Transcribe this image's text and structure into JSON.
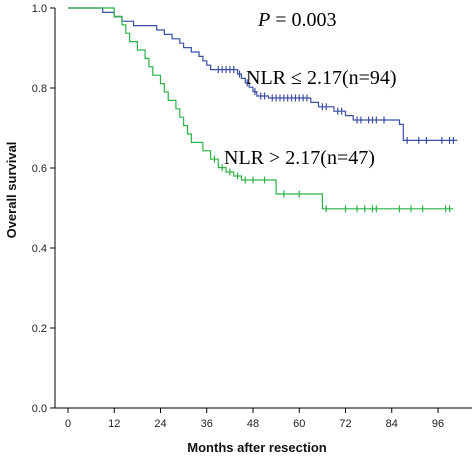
{
  "chart_data": {
    "type": "line",
    "xlabel": "Months after resection",
    "ylabel": "Overall survival",
    "xlim": [
      0,
      102
    ],
    "ylim": [
      0,
      1.0
    ],
    "xticks": [
      0,
      12,
      24,
      36,
      48,
      60,
      72,
      84,
      96
    ],
    "yticks": [
      0.0,
      0.2,
      0.4,
      0.6,
      0.8,
      1.0
    ],
    "xtick_labels": [
      "0",
      "12",
      "24",
      "36",
      "48",
      "60",
      "72",
      "84",
      "96"
    ],
    "ytick_labels": [
      "0.0",
      "0.2",
      "0.4",
      "0.6",
      "0.8",
      "1.0"
    ],
    "annotations": {
      "p_label": "P",
      "p_value": " = 0.003",
      "nlr_low": "NLR ≤ 2.17(n=94)",
      "nlr_high": "NLR > 2.17(n=47)"
    },
    "series": [
      {
        "color": "#3a4fa6",
        "steps": [
          [
            0,
            1.0
          ],
          [
            9,
            0.989
          ],
          [
            12,
            0.978
          ],
          [
            14,
            0.967
          ],
          [
            17,
            0.956
          ],
          [
            23,
            0.945
          ],
          [
            25,
            0.934
          ],
          [
            27,
            0.923
          ],
          [
            29,
            0.912
          ],
          [
            30,
            0.901
          ],
          [
            32,
            0.89
          ],
          [
            34,
            0.879
          ],
          [
            35,
            0.868
          ],
          [
            36,
            0.857
          ],
          [
            37,
            0.846
          ],
          [
            44,
            0.835
          ],
          [
            45,
            0.824
          ],
          [
            46,
            0.813
          ],
          [
            47,
            0.802
          ],
          [
            48,
            0.791
          ],
          [
            49,
            0.78
          ],
          [
            52,
            0.775
          ],
          [
            63,
            0.764
          ],
          [
            65,
            0.753
          ],
          [
            69,
            0.742
          ],
          [
            72,
            0.731
          ],
          [
            74,
            0.72
          ],
          [
            86,
            0.709
          ],
          [
            87,
            0.669
          ],
          [
            101,
            0.669
          ]
        ],
        "censored": [
          [
            39,
            0.846
          ],
          [
            40,
            0.846
          ],
          [
            41,
            0.846
          ],
          [
            42,
            0.846
          ],
          [
            43,
            0.846
          ],
          [
            44.5,
            0.835
          ],
          [
            46.5,
            0.813
          ],
          [
            48.5,
            0.791
          ],
          [
            50,
            0.78
          ],
          [
            51,
            0.78
          ],
          [
            53,
            0.775
          ],
          [
            54,
            0.775
          ],
          [
            55,
            0.775
          ],
          [
            56,
            0.775
          ],
          [
            57,
            0.775
          ],
          [
            58,
            0.775
          ],
          [
            59,
            0.775
          ],
          [
            60,
            0.775
          ],
          [
            61,
            0.775
          ],
          [
            62,
            0.775
          ],
          [
            66,
            0.753
          ],
          [
            67,
            0.753
          ],
          [
            70,
            0.742
          ],
          [
            71,
            0.742
          ],
          [
            75,
            0.72
          ],
          [
            76,
            0.72
          ],
          [
            78,
            0.72
          ],
          [
            79,
            0.72
          ],
          [
            80,
            0.72
          ],
          [
            82,
            0.72
          ],
          [
            88,
            0.669
          ],
          [
            91,
            0.669
          ],
          [
            93,
            0.669
          ],
          [
            97,
            0.669
          ],
          [
            99,
            0.669
          ],
          [
            100,
            0.669
          ]
        ]
      },
      {
        "color": "#2db34a",
        "steps": [
          [
            0,
            1.0
          ],
          [
            12,
            0.979
          ],
          [
            14,
            0.958
          ],
          [
            15,
            0.937
          ],
          [
            16,
            0.916
          ],
          [
            18,
            0.895
          ],
          [
            20,
            0.874
          ],
          [
            21,
            0.853
          ],
          [
            22,
            0.832
          ],
          [
            24,
            0.811
          ],
          [
            25,
            0.79
          ],
          [
            26,
            0.769
          ],
          [
            28,
            0.748
          ],
          [
            29,
            0.727
          ],
          [
            30,
            0.706
          ],
          [
            31,
            0.685
          ],
          [
            32,
            0.664
          ],
          [
            35,
            0.643
          ],
          [
            37,
            0.622
          ],
          [
            39,
            0.601
          ],
          [
            41,
            0.59
          ],
          [
            43,
            0.58
          ],
          [
            45,
            0.57
          ],
          [
            54,
            0.535
          ],
          [
            66,
            0.498
          ],
          [
            100,
            0.498
          ]
        ],
        "censored": [
          [
            38,
            0.622
          ],
          [
            40,
            0.601
          ],
          [
            42,
            0.59
          ],
          [
            44,
            0.58
          ],
          [
            46,
            0.57
          ],
          [
            48,
            0.57
          ],
          [
            51,
            0.57
          ],
          [
            56,
            0.535
          ],
          [
            60,
            0.535
          ],
          [
            67,
            0.498
          ],
          [
            72,
            0.498
          ],
          [
            75,
            0.498
          ],
          [
            77,
            0.498
          ],
          [
            79,
            0.498
          ],
          [
            80,
            0.498
          ],
          [
            86,
            0.498
          ],
          [
            89,
            0.498
          ],
          [
            92,
            0.498
          ],
          [
            98,
            0.498
          ],
          [
            99,
            0.498
          ]
        ]
      }
    ]
  }
}
